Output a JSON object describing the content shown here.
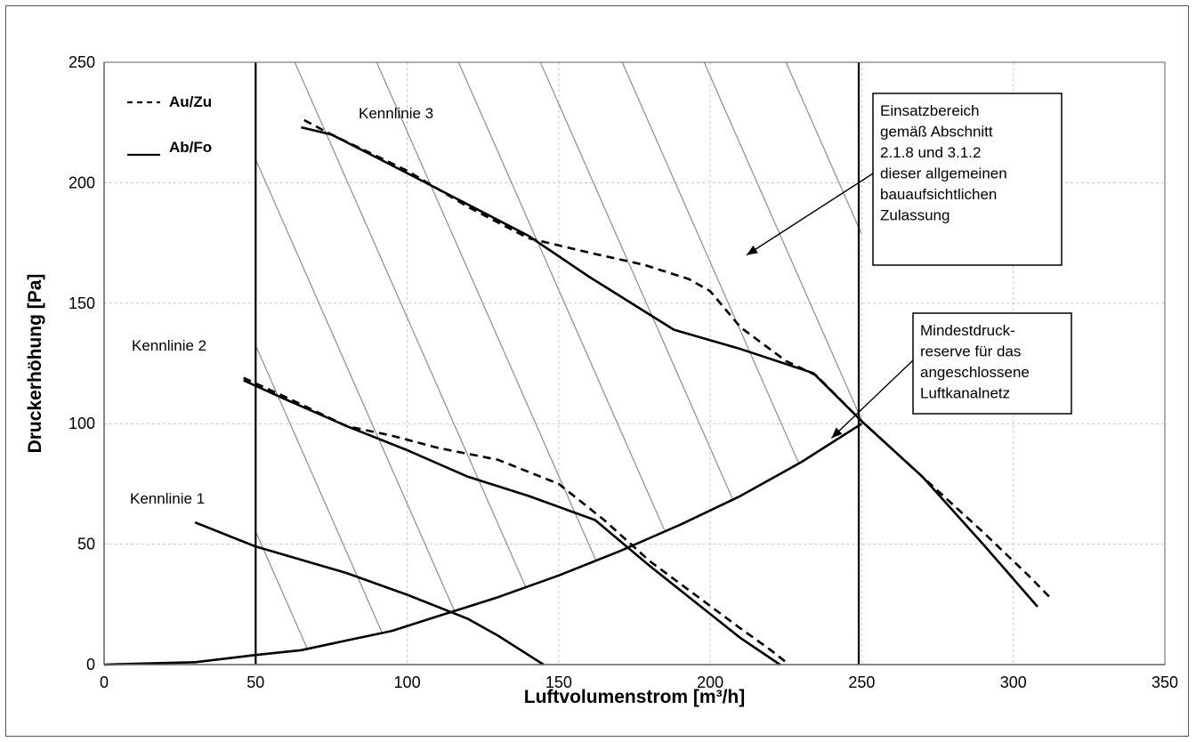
{
  "chart_data": {
    "type": "line",
    "xlabel": "Luftvolumenstrom [m³/h]",
    "ylabel": "Druckerhöhung [Pa]",
    "xlim": [
      0,
      350
    ],
    "ylim": [
      0,
      250
    ],
    "x_ticks": [
      "0",
      "50",
      "100",
      "150",
      "200",
      "250",
      "300",
      "350"
    ],
    "y_ticks": [
      "0",
      "50",
      "100",
      "150",
      "200",
      "250"
    ],
    "grid": true,
    "legend_position": "top-left",
    "legend": [
      {
        "label": "Au/Zu",
        "style": "dashed"
      },
      {
        "label": "Ab/Fo",
        "style": "solid"
      }
    ],
    "series": [
      {
        "name": "Au/Zu",
        "curve": "Kennlinie 3",
        "style": "dashed",
        "x": [
          66,
          75,
          100,
          120,
          140,
          160,
          178,
          193,
          200,
          210,
          225,
          235,
          250,
          270,
          290,
          305,
          312
        ],
        "y": [
          226,
          220,
          205,
          190,
          177,
          171,
          166,
          160,
          155,
          140,
          126,
          120,
          101,
          78,
          55,
          37,
          28
        ]
      },
      {
        "name": "Ab/Fo",
        "curve": "Kennlinie 3",
        "style": "solid",
        "x": [
          65,
          75,
          100,
          120,
          140,
          160,
          188,
          210,
          234,
          250,
          270,
          290,
          308
        ],
        "y": [
          223,
          220,
          204,
          191,
          178,
          161,
          139,
          131,
          121,
          101,
          78,
          50,
          24
        ]
      },
      {
        "name": "Au/Zu",
        "curve": "Kennlinie 2",
        "style": "dashed",
        "x": [
          46,
          60,
          80,
          95,
          110,
          130,
          150,
          165,
          180,
          195,
          210,
          220,
          226
        ],
        "y": [
          119,
          111,
          99,
          95,
          90,
          85,
          75,
          60,
          43,
          29,
          15,
          6,
          0
        ]
      },
      {
        "name": "Ab/Fo",
        "curve": "Kennlinie 2",
        "style": "solid",
        "x": [
          46,
          60,
          80,
          100,
          120,
          140,
          162,
          180,
          195,
          210,
          223
        ],
        "y": [
          118,
          110,
          99,
          89,
          78,
          70,
          60,
          41,
          26,
          11,
          0
        ]
      },
      {
        "name": "Ab/Fo",
        "curve": "Kennlinie 1",
        "style": "solid",
        "x": [
          30,
          50,
          80,
          100,
          120,
          130,
          140,
          145
        ],
        "y": [
          59,
          49,
          38,
          29,
          19,
          12,
          4,
          0
        ]
      },
      {
        "name": "Mindestdruckreserve",
        "style": "solid",
        "x": [
          0,
          30,
          50,
          65,
          80,
          95,
          110,
          130,
          150,
          170,
          190,
          210,
          230,
          250
        ],
        "y": [
          0,
          1,
          4,
          6,
          10,
          14,
          20,
          28,
          37,
          47,
          58,
          70,
          84,
          100
        ]
      },
      {
        "name": "Grenze 50",
        "style": "solid",
        "x": [
          50,
          50
        ],
        "y": [
          0,
          250
        ]
      },
      {
        "name": "Grenze 250",
        "style": "solid",
        "x": [
          249,
          249
        ],
        "y": [
          0,
          250
        ]
      }
    ],
    "hatch": {
      "x_left": 50,
      "x_right": 250,
      "lower_curve": "Mindestdruckreserve",
      "upper_y": 250
    },
    "annotations": [
      {
        "text": "Kennlinie 3",
        "x": 84,
        "y": 228
      },
      {
        "text": "Kennlinie 2",
        "x": 9,
        "y": 132
      },
      {
        "text": "Kennlinie 1",
        "x": 8,
        "y": 67
      },
      {
        "lines": [
          "Einsatzbereich",
          "gemäß Abschnitt",
          "2.1.8 und 3.1.2",
          "dieser allgemeinen",
          "bauaufsichtlichen",
          "Zulassung"
        ],
        "boxed": true,
        "arrow_to": [
          212,
          170
        ]
      },
      {
        "lines": [
          "Mindestdruck-",
          "reserve für das",
          "angeschlossene",
          "Luftkanalnetz"
        ],
        "boxed": true,
        "arrow_to": [
          240,
          94
        ]
      }
    ]
  }
}
